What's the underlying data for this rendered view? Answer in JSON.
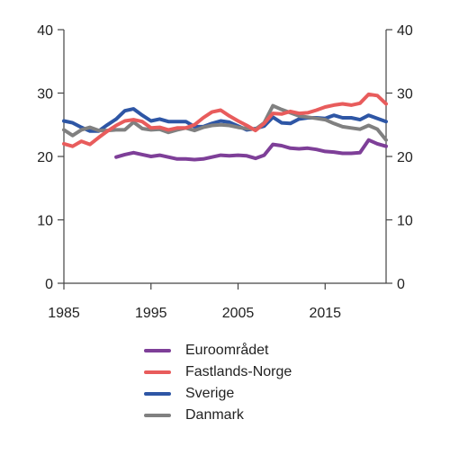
{
  "chart_data": {
    "type": "line",
    "title": "",
    "xlabel": "",
    "ylabel": "",
    "xlim": [
      1985,
      2022
    ],
    "ylim": [
      0,
      40
    ],
    "y_ticks": [
      0,
      10,
      20,
      30,
      40
    ],
    "x_ticks": [
      1985,
      1995,
      2005,
      2015
    ],
    "x_tick_labels": [
      "1985",
      "1995",
      "2005",
      "2015"
    ],
    "y_tick_labels": [
      "0",
      "10",
      "20",
      "30",
      "40"
    ],
    "grid": false,
    "legend_position": "bottom",
    "series": [
      {
        "name": "Euroområdet",
        "color": "#7e3f98",
        "x": [
          1991,
          1992,
          1993,
          1994,
          1995,
          1996,
          1997,
          1998,
          1999,
          2000,
          2001,
          2002,
          2003,
          2004,
          2005,
          2006,
          2007,
          2008,
          2009,
          2010,
          2011,
          2012,
          2013,
          2014,
          2015,
          2016,
          2017,
          2018,
          2019,
          2020,
          2021,
          2022
        ],
        "values": [
          19.9,
          20.3,
          20.6,
          20.3,
          20.0,
          20.2,
          19.9,
          19.6,
          19.6,
          19.5,
          19.6,
          19.9,
          20.2,
          20.1,
          20.2,
          20.1,
          19.7,
          20.2,
          21.9,
          21.7,
          21.3,
          21.2,
          21.3,
          21.1,
          20.8,
          20.7,
          20.5,
          20.5,
          20.6,
          22.6,
          22.0,
          21.6
        ]
      },
      {
        "name": "Fastlands-Norge",
        "color": "#e85c5c",
        "x": [
          1985,
          1986,
          1987,
          1988,
          1989,
          1990,
          1991,
          1992,
          1993,
          1994,
          1995,
          1996,
          1997,
          1998,
          1999,
          2000,
          2001,
          2002,
          2003,
          2004,
          2005,
          2006,
          2007,
          2008,
          2009,
          2010,
          2011,
          2012,
          2013,
          2014,
          2015,
          2016,
          2017,
          2018,
          2019,
          2020,
          2021,
          2022
        ],
        "values": [
          22.0,
          21.6,
          22.4,
          21.9,
          23.0,
          24.0,
          24.9,
          25.6,
          25.8,
          25.5,
          24.5,
          24.6,
          24.2,
          24.5,
          24.5,
          25.0,
          26.1,
          27.0,
          27.3,
          26.4,
          25.6,
          24.9,
          24.1,
          25.2,
          26.8,
          26.7,
          27.1,
          26.8,
          26.9,
          27.3,
          27.8,
          28.1,
          28.3,
          28.1,
          28.4,
          29.8,
          29.6,
          28.3
        ]
      },
      {
        "name": "Sverige",
        "color": "#2e56a5",
        "x": [
          1985,
          1986,
          1987,
          1988,
          1989,
          1990,
          1991,
          1992,
          1993,
          1994,
          1995,
          1996,
          1997,
          1998,
          1999,
          2000,
          2001,
          2002,
          2003,
          2004,
          2005,
          2006,
          2007,
          2008,
          2009,
          2010,
          2011,
          2012,
          2013,
          2014,
          2015,
          2016,
          2017,
          2018,
          2019,
          2020,
          2021,
          2022
        ],
        "values": [
          25.6,
          25.3,
          24.6,
          24.0,
          24.0,
          25.0,
          25.9,
          27.2,
          27.5,
          26.5,
          25.6,
          25.9,
          25.5,
          25.5,
          25.5,
          24.7,
          24.7,
          25.2,
          25.6,
          25.4,
          24.8,
          24.2,
          24.4,
          24.8,
          26.2,
          25.3,
          25.2,
          25.9,
          26.1,
          26.1,
          26.0,
          26.5,
          26.1,
          26.1,
          25.8,
          26.5,
          26.0,
          25.5
        ]
      },
      {
        "name": "Danmark",
        "color": "#808080",
        "x": [
          1985,
          1986,
          1987,
          1988,
          1989,
          1990,
          1991,
          1992,
          1993,
          1994,
          1995,
          1996,
          1997,
          1998,
          1999,
          2000,
          2001,
          2002,
          2003,
          2004,
          2005,
          2006,
          2007,
          2008,
          2009,
          2010,
          2011,
          2012,
          2013,
          2014,
          2015,
          2016,
          2017,
          2018,
          2019,
          2020,
          2021,
          2022
        ],
        "values": [
          24.2,
          23.3,
          24.2,
          24.6,
          24.1,
          24.1,
          24.2,
          24.2,
          25.4,
          24.4,
          24.2,
          24.3,
          23.8,
          24.2,
          24.5,
          24.1,
          24.6,
          24.9,
          25.0,
          24.9,
          24.6,
          24.4,
          24.3,
          25.3,
          28.0,
          27.4,
          26.9,
          26.4,
          26.2,
          26.0,
          25.8,
          25.2,
          24.7,
          24.5,
          24.3,
          24.9,
          24.3,
          22.6
        ]
      }
    ]
  }
}
